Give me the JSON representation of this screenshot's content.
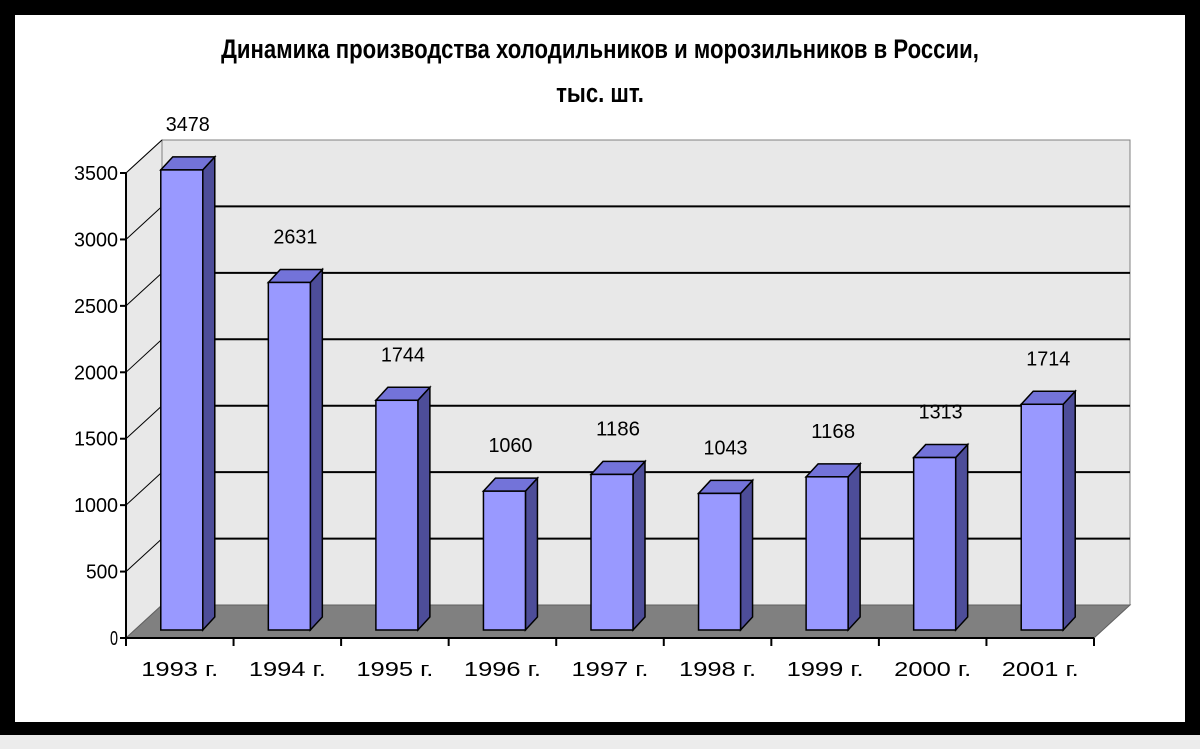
{
  "chart_data": {
    "type": "bar",
    "title": "Динамика производства холодильников и морозильников в России,",
    "subtitle": "тыс. шт.",
    "categories": [
      "1993 г.",
      "1994 г.",
      "1995 г.",
      "1996 г.",
      "1997 г.",
      "1998 г.",
      "1999 г.",
      "2000 г.",
      "2001 г."
    ],
    "values": [
      3478,
      2631,
      1744,
      1060,
      1186,
      1043,
      1168,
      1313,
      1714
    ],
    "data_labels": [
      "3478",
      "2631",
      "1744",
      "1060",
      "1186",
      "1043",
      "1168",
      "1313",
      "1714"
    ],
    "ylim": [
      0,
      3500
    ],
    "yticks": [
      0,
      500,
      1000,
      1500,
      2000,
      2500,
      3000,
      3500
    ],
    "ytick_labels": [
      "0",
      "500",
      "1000",
      "1500",
      "2000",
      "2500",
      "3000",
      "3500"
    ],
    "grid": true,
    "style": "3d-column",
    "colors": {
      "bar_front": "#9999ff",
      "bar_side": "#4d4d99",
      "bar_top": "#7373d9",
      "wall": "#e8e8e8",
      "floor": "#808080",
      "frame": "#000000"
    }
  }
}
